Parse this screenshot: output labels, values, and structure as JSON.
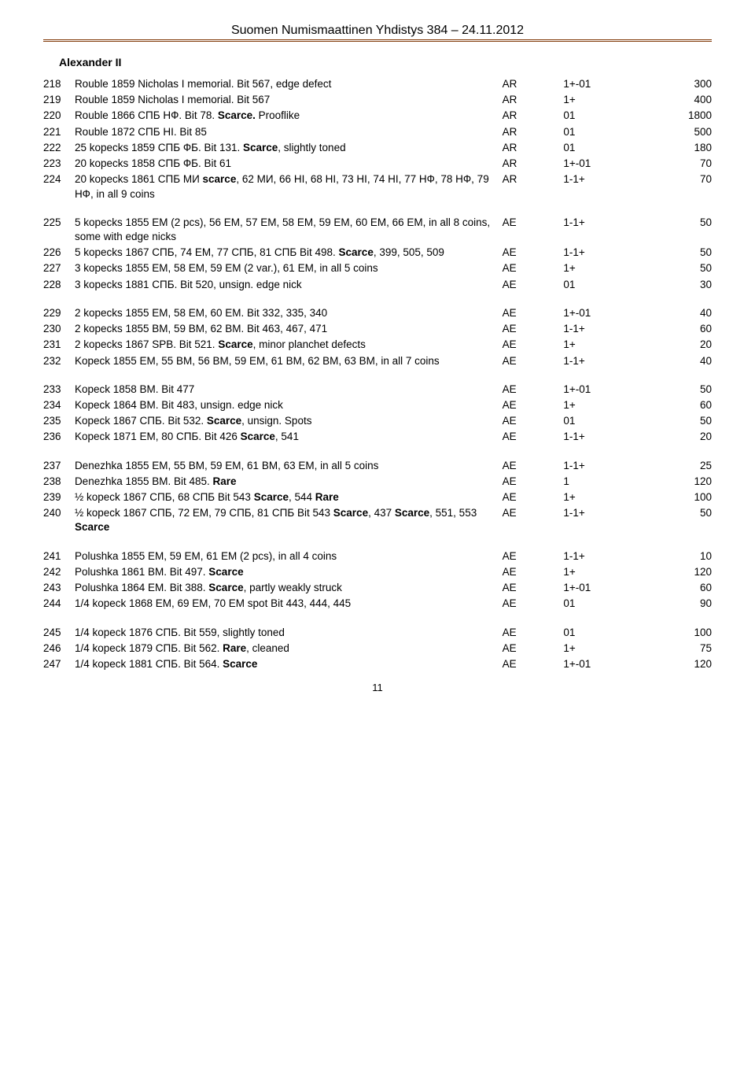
{
  "header": "Suomen Numismaattinen Yhdistys 384 – 24.11.2012",
  "section_heading": "Alexander II",
  "page_number": "11",
  "lots": [
    [
      {
        "num": "218",
        "desc": "Rouble 1859 Nicholas I memorial. Bit 567, edge defect",
        "metal": "AR",
        "grade": "1+-01",
        "price": "300"
      },
      {
        "num": "219",
        "desc": "Rouble 1859 Nicholas I memorial. Bit 567",
        "metal": "AR",
        "grade": "1+",
        "price": "400"
      },
      {
        "num": "220",
        "desc": "Rouble 1866 СПБ НФ. Bit 78. <b>Scarce.</b> Prooflike",
        "metal": "AR",
        "grade": "01",
        "price": "1800"
      },
      {
        "num": "221",
        "desc": "Rouble 1872 СПБ НI. Bit 85",
        "metal": "AR",
        "grade": "01",
        "price": "500"
      },
      {
        "num": "222",
        "desc": "25 kopecks 1859 СПБ ФБ. Bit 131. <b>Scarce</b>, slightly toned",
        "metal": "AR",
        "grade": "01",
        "price": "180"
      },
      {
        "num": "223",
        "desc": "20 kopecks 1858 СПБ ФБ. Bit 61",
        "metal": "AR",
        "grade": "1+-01",
        "price": "70"
      },
      {
        "num": "224",
        "desc": "20 kopecks 1861 СПБ МИ <b>scarce</b>, 62  МИ, 66 НI, 68 НI, 73 НI, 74 НI, 77 НФ, 78 НФ, 79 НФ, in all 9 coins",
        "metal": "AR",
        "grade": "1-1+",
        "price": "70"
      }
    ],
    [
      {
        "num": "225",
        "desc": "5 kopecks 1855 ЕМ (2 pcs), 56 ЕМ, 57 ЕМ, 58 ЕМ, 59 ЕМ, 60 ЕМ, 66 ЕМ, in all 8 coins, some with edge nicks",
        "metal": "AE",
        "grade": "1-1+",
        "price": "50"
      },
      {
        "num": "226",
        "desc": "5 kopecks 1867 СПБ, 74 ЕМ, 77 СПБ, 81 СПБ Bit 498. <b>Scarce</b>, 399, 505, 509",
        "metal": "AE",
        "grade": "1-1+",
        "price": "50"
      },
      {
        "num": "227",
        "desc": "3 kopecks 1855 ЕМ, 58 ЕМ, 59 ЕМ (2 var.), 61 ЕМ, in all 5 coins",
        "metal": "AE",
        "grade": "1+",
        "price": "50"
      },
      {
        "num": "228",
        "desc": "3 kopecks 1881 СПБ. Bit  520, unsign. edge nick",
        "metal": "AE",
        "grade": "01",
        "price": "30"
      }
    ],
    [
      {
        "num": "229",
        "desc": "2 kopecks 1855 ЕМ, 58 ЕМ, 60 ЕМ. Bit  332, 335, 340",
        "metal": "AE",
        "grade": "1+-01",
        "price": "40"
      },
      {
        "num": "230",
        "desc": "2 kopecks 1855 ВМ, 59 ВМ, 62 ВМ. Bit 463, 467, 471",
        "metal": "AE",
        "grade": "1-1+",
        "price": "60"
      },
      {
        "num": "231",
        "desc": "2 kopecks 1867 SPB. Bit 521. <b>Scarce</b>, minor planchet defects",
        "metal": "AE",
        "grade": "1+",
        "price": "20"
      },
      {
        "num": "232",
        "desc": "Kopeck 1855 ЕМ, 55 ВМ, 56 ВМ, 59 ЕМ, 61 ВМ, 62 ВМ, 63 ВМ, in all 7 coins",
        "metal": "AE",
        "grade": "1-1+",
        "price": "40"
      }
    ],
    [
      {
        "num": "233",
        "desc": "Kopeck 1858 ВМ. Bit 477",
        "metal": "AE",
        "grade": "1+-01",
        "price": "50"
      },
      {
        "num": "234",
        "desc": "Kopeck 1864 ВМ. Bit 483, unsign. edge nick",
        "metal": "AE",
        "grade": "1+",
        "price": "60"
      },
      {
        "num": "235",
        "desc": "Kopeck 1867 СПБ. Bit 532. <b>Scarce</b>, unsign. Spots",
        "metal": "AE",
        "grade": "01",
        "price": "50"
      },
      {
        "num": "236",
        "desc": "Kopeck 1871 ЕМ, 80 СПБ. Bit 426 <b>Scarce</b>, 541",
        "metal": "AE",
        "grade": "1-1+",
        "price": "20"
      }
    ],
    [
      {
        "num": "237",
        "desc": "Denezhka 1855 ЕМ, 55 ВМ, 59 ЕМ, 61 ВМ, 63 ЕМ, in all 5 coins",
        "metal": "AE",
        "grade": "1-1+",
        "price": "25"
      },
      {
        "num": "238",
        "desc": "Denezhka 1855 ВМ. Bit 485. <b>Rare</b>",
        "metal": "AE",
        "grade": "1",
        "price": "120"
      },
      {
        "num": "239",
        "desc": "½ kopeck 1867 СПБ, 68 СПБ Bit 543 <b>Scarce</b>, 544 <b>Rare</b>",
        "metal": "AE",
        "grade": "1+",
        "price": "100"
      },
      {
        "num": "240",
        "desc": "½ kopeck 1867 СПБ, 72 ЕМ, 79 СПБ, 81 СПБ Bit 543 <b>Scarce</b>, 437 <b>Scarce</b>, 551, 553 <b>Scarce</b>",
        "metal": "AE",
        "grade": "1-1+",
        "price": "50"
      }
    ],
    [
      {
        "num": "241",
        "desc": "Polushka 1855 ЕМ, 59 ЕМ, 61 ЕМ (2 pcs), in all 4 coins",
        "metal": "AE",
        "grade": "1-1+",
        "price": "10"
      },
      {
        "num": "242",
        "desc": "Polushka 1861 ВМ. Bit 497. <b>Scarce</b>",
        "metal": "AE",
        "grade": "1+",
        "price": "120"
      },
      {
        "num": "243",
        "desc": "Polushka 1864 ЕМ. Bit 388. <b>Scarce</b>, partly weakly struck",
        "metal": "AE",
        "grade": "1+-01",
        "price": "60"
      },
      {
        "num": "244",
        "desc": "1/4 kopeck 1868 ЕМ, 69 ЕМ, 70 ЕМ spot Bit 443, 444, 445",
        "metal": "AE",
        "grade": "01",
        "price": "90"
      }
    ],
    [
      {
        "num": "245",
        "desc": "1/4 kopeck 1876 СПБ. Bit 559, slightly toned",
        "metal": "AE",
        "grade": "01",
        "price": "100"
      },
      {
        "num": "246",
        "desc": "1/4 kopeck 1879 СПБ. Bit 562. <b>Rare</b>, cleaned",
        "metal": "AE",
        "grade": "1+",
        "price": "75"
      },
      {
        "num": "247",
        "desc": "1/4 kopeck 1881 СПБ. Bit 564. <b>Scarce</b>",
        "metal": "AE",
        "grade": "1+-01",
        "price": "120"
      }
    ]
  ]
}
